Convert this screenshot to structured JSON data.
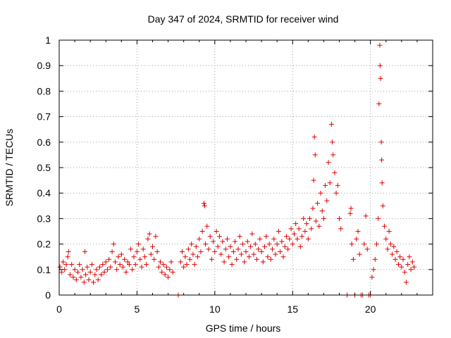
{
  "chart_data": {
    "type": "scatter",
    "title": "Day 347 of 2024, SRMTID for receiver wind",
    "xlabel": "GPS time / hours",
    "ylabel": "SRMTID / TECUs",
    "xlim": [
      0,
      24
    ],
    "ylim": [
      0,
      1
    ],
    "xticks": [
      0,
      5,
      10,
      15,
      20
    ],
    "xtick_labels": [
      "0",
      "5",
      "10",
      "15",
      "20"
    ],
    "yticks": [
      0,
      0.1,
      0.2,
      0.3,
      0.4,
      0.5,
      0.6,
      0.7,
      0.8,
      0.9,
      1
    ],
    "ytick_labels": [
      "0",
      "0.1",
      "0.2",
      "0.3",
      "0.4",
      "0.5",
      "0.6",
      "0.7",
      "0.8",
      "0.9",
      "1"
    ],
    "grid": true,
    "marker": "+",
    "color": "#e00000",
    "series": [
      {
        "name": "SRMTID",
        "points": [
          [
            0.05,
            0.11
          ],
          [
            0.15,
            0.09
          ],
          [
            0.25,
            0.13
          ],
          [
            0.35,
            0.1
          ],
          [
            0.45,
            0.12
          ],
          [
            0.55,
            0.15
          ],
          [
            0.6,
            0.17
          ],
          [
            0.7,
            0.08
          ],
          [
            0.8,
            0.12
          ],
          [
            0.9,
            0.07
          ],
          [
            1.0,
            0.1
          ],
          [
            1.1,
            0.06
          ],
          [
            1.2,
            0.09
          ],
          [
            1.3,
            0.12
          ],
          [
            1.4,
            0.07
          ],
          [
            1.5,
            0.1
          ],
          [
            1.6,
            0.05
          ],
          [
            1.65,
            0.17
          ],
          [
            1.7,
            0.08
          ],
          [
            1.8,
            0.11
          ],
          [
            1.9,
            0.06
          ],
          [
            2.0,
            0.09
          ],
          [
            2.1,
            0.12
          ],
          [
            2.2,
            0.05
          ],
          [
            2.3,
            0.08
          ],
          [
            2.4,
            0.1
          ],
          [
            2.5,
            0.06
          ],
          [
            2.6,
            0.11
          ],
          [
            2.7,
            0.08
          ],
          [
            2.8,
            0.12
          ],
          [
            2.9,
            0.09
          ],
          [
            3.0,
            0.13
          ],
          [
            3.1,
            0.1
          ],
          [
            3.2,
            0.14
          ],
          [
            3.3,
            0.11
          ],
          [
            3.4,
            0.17
          ],
          [
            3.5,
            0.2
          ],
          [
            3.6,
            0.13
          ],
          [
            3.7,
            0.1
          ],
          [
            3.8,
            0.15
          ],
          [
            3.9,
            0.12
          ],
          [
            4.0,
            0.16
          ],
          [
            4.1,
            0.11
          ],
          [
            4.2,
            0.14
          ],
          [
            4.3,
            0.09
          ],
          [
            4.4,
            0.13
          ],
          [
            4.5,
            0.12
          ],
          [
            4.6,
            0.18
          ],
          [
            4.7,
            0.1
          ],
          [
            4.8,
            0.15
          ],
          [
            4.9,
            0.12
          ],
          [
            5.0,
            0.17
          ],
          [
            5.1,
            0.2
          ],
          [
            5.2,
            0.14
          ],
          [
            5.3,
            0.11
          ],
          [
            5.4,
            0.18
          ],
          [
            5.5,
            0.15
          ],
          [
            5.6,
            0.12
          ],
          [
            5.7,
            0.22
          ],
          [
            5.8,
            0.24
          ],
          [
            5.9,
            0.16
          ],
          [
            6.0,
            0.19
          ],
          [
            6.1,
            0.14
          ],
          [
            6.2,
            0.23
          ],
          [
            6.3,
            0.17
          ],
          [
            6.4,
            0.11
          ],
          [
            6.5,
            0.13
          ],
          [
            6.6,
            0.09
          ],
          [
            6.7,
            0.12
          ],
          [
            6.8,
            0.08
          ],
          [
            6.9,
            0.11
          ],
          [
            7.0,
            0.07
          ],
          [
            7.1,
            0.1
          ],
          [
            7.2,
            0.13
          ],
          [
            7.3,
            0.09
          ],
          [
            7.65,
            0.0
          ],
          [
            7.8,
            0.13
          ],
          [
            7.9,
            0.17
          ],
          [
            8.0,
            0.11
          ],
          [
            8.1,
            0.15
          ],
          [
            8.2,
            0.12
          ],
          [
            8.3,
            0.18
          ],
          [
            8.4,
            0.14
          ],
          [
            8.5,
            0.2
          ],
          [
            8.6,
            0.16
          ],
          [
            8.7,
            0.12
          ],
          [
            8.8,
            0.19
          ],
          [
            8.9,
            0.15
          ],
          [
            9.0,
            0.22
          ],
          [
            9.1,
            0.17
          ],
          [
            9.2,
            0.25
          ],
          [
            9.3,
            0.36
          ],
          [
            9.35,
            0.35
          ],
          [
            9.4,
            0.2
          ],
          [
            9.5,
            0.27
          ],
          [
            9.6,
            0.18
          ],
          [
            9.7,
            0.23
          ],
          [
            9.8,
            0.14
          ],
          [
            9.9,
            0.21
          ],
          [
            10.0,
            0.17
          ],
          [
            10.1,
            0.25
          ],
          [
            10.2,
            0.19
          ],
          [
            10.3,
            0.23
          ],
          [
            10.4,
            0.16
          ],
          [
            10.5,
            0.21
          ],
          [
            10.6,
            0.13
          ],
          [
            10.7,
            0.18
          ],
          [
            10.8,
            0.22
          ],
          [
            10.9,
            0.15
          ],
          [
            11.0,
            0.19
          ],
          [
            11.1,
            0.12
          ],
          [
            11.2,
            0.17
          ],
          [
            11.3,
            0.21
          ],
          [
            11.4,
            0.14
          ],
          [
            11.5,
            0.18
          ],
          [
            11.6,
            0.23
          ],
          [
            11.7,
            0.16
          ],
          [
            11.8,
            0.2
          ],
          [
            11.9,
            0.13
          ],
          [
            12.0,
            0.17
          ],
          [
            12.1,
            0.21
          ],
          [
            12.2,
            0.15
          ],
          [
            12.3,
            0.19
          ],
          [
            12.4,
            0.24
          ],
          [
            12.5,
            0.16
          ],
          [
            12.6,
            0.2
          ],
          [
            12.7,
            0.14
          ],
          [
            12.8,
            0.18
          ],
          [
            12.9,
            0.22
          ],
          [
            13.0,
            0.17
          ],
          [
            13.1,
            0.13
          ],
          [
            13.2,
            0.19
          ],
          [
            13.3,
            0.23
          ],
          [
            13.4,
            0.15
          ],
          [
            13.5,
            0.2
          ],
          [
            13.6,
            0.14
          ],
          [
            13.7,
            0.18
          ],
          [
            13.8,
            0.22
          ],
          [
            13.9,
            0.16
          ],
          [
            14.0,
            0.2
          ],
          [
            14.1,
            0.25
          ],
          [
            14.2,
            0.17
          ],
          [
            14.3,
            0.21
          ],
          [
            14.4,
            0.15
          ],
          [
            14.5,
            0.19
          ],
          [
            14.6,
            0.23
          ],
          [
            14.7,
            0.18
          ],
          [
            14.8,
            0.22
          ],
          [
            14.9,
            0.26
          ],
          [
            15.0,
            0.2
          ],
          [
            15.1,
            0.24
          ],
          [
            15.2,
            0.28
          ],
          [
            15.3,
            0.22
          ],
          [
            15.4,
            0.26
          ],
          [
            15.5,
            0.19
          ],
          [
            15.6,
            0.23
          ],
          [
            15.7,
            0.3
          ],
          [
            15.8,
            0.25
          ],
          [
            15.9,
            0.28
          ],
          [
            16.0,
            0.22
          ],
          [
            16.1,
            0.3
          ],
          [
            16.2,
            0.26
          ],
          [
            16.3,
            0.34
          ],
          [
            16.35,
            0.45
          ],
          [
            16.4,
            0.62
          ],
          [
            16.45,
            0.55
          ],
          [
            16.5,
            0.29
          ],
          [
            16.6,
            0.36
          ],
          [
            16.7,
            0.27
          ],
          [
            16.8,
            0.4
          ],
          [
            16.9,
            0.33
          ],
          [
            17.0,
            0.3
          ],
          [
            17.1,
            0.43
          ],
          [
            17.2,
            0.37
          ],
          [
            17.3,
            0.52
          ],
          [
            17.4,
            0.44
          ],
          [
            17.5,
            0.67
          ],
          [
            17.55,
            0.6
          ],
          [
            17.6,
            0.55
          ],
          [
            17.7,
            0.48
          ],
          [
            17.8,
            0.4
          ],
          [
            17.9,
            0.43
          ],
          [
            18.0,
            0.3
          ],
          [
            18.1,
            0.26
          ],
          [
            18.5,
            0.0
          ],
          [
            18.7,
            0.32
          ],
          [
            18.75,
            0.34
          ],
          [
            18.8,
            0.2
          ],
          [
            18.9,
            0.14
          ],
          [
            19.0,
            0.0
          ],
          [
            19.1,
            0.22
          ],
          [
            19.2,
            0.25
          ],
          [
            19.3,
            0.16
          ],
          [
            19.4,
            0.0
          ],
          [
            19.5,
            0.0
          ],
          [
            19.6,
            0.2
          ],
          [
            19.7,
            0.31
          ],
          [
            19.8,
            0.18
          ],
          [
            19.9,
            0.0
          ],
          [
            20.0,
            0.0
          ],
          [
            20.1,
            0.07
          ],
          [
            20.2,
            0.1
          ],
          [
            20.3,
            0.14
          ],
          [
            20.4,
            0.2
          ],
          [
            20.5,
            0.3
          ],
          [
            20.55,
            0.75
          ],
          [
            20.6,
            0.98
          ],
          [
            20.62,
            0.9
          ],
          [
            20.65,
            0.85
          ],
          [
            20.7,
            0.6
          ],
          [
            20.72,
            0.53
          ],
          [
            20.75,
            0.44
          ],
          [
            20.8,
            0.35
          ],
          [
            20.9,
            0.27
          ],
          [
            21.0,
            0.22
          ],
          [
            21.1,
            0.18
          ],
          [
            21.2,
            0.25
          ],
          [
            21.3,
            0.2
          ],
          [
            21.4,
            0.16
          ],
          [
            21.5,
            0.19
          ],
          [
            21.6,
            0.14
          ],
          [
            21.7,
            0.17
          ],
          [
            21.8,
            0.12
          ],
          [
            21.9,
            0.15
          ],
          [
            22.0,
            0.11
          ],
          [
            22.1,
            0.14
          ],
          [
            22.2,
            0.09
          ],
          [
            22.3,
            0.05
          ],
          [
            22.4,
            0.12
          ],
          [
            22.5,
            0.15
          ],
          [
            22.6,
            0.1
          ],
          [
            22.7,
            0.13
          ],
          [
            22.8,
            0.11
          ]
        ]
      }
    ]
  }
}
